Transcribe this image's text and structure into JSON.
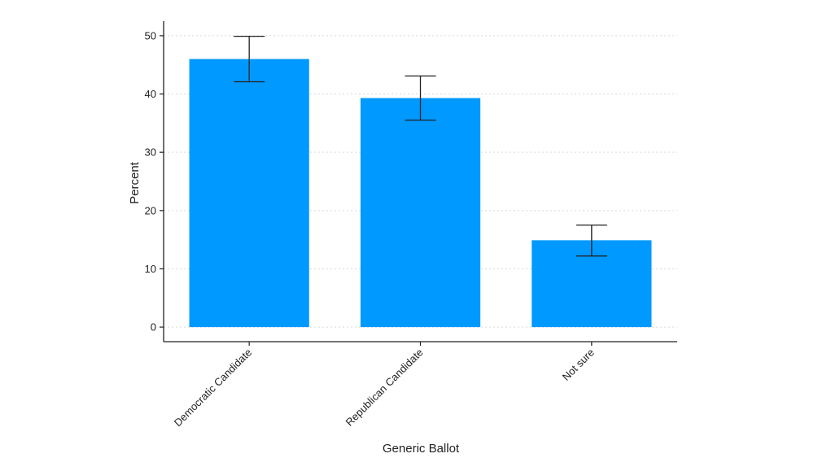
{
  "chart_data": {
    "type": "bar",
    "title": "",
    "xlabel": "Generic Ballot",
    "ylabel": "Percent",
    "categories": [
      "Democratic Candidate",
      "Republican Candidate",
      "Not sure"
    ],
    "values": [
      46.0,
      39.3,
      14.9
    ],
    "error_low": [
      42.1,
      35.5,
      12.2
    ],
    "error_high": [
      49.9,
      43.1,
      17.5
    ],
    "ylim": [
      -2.5,
      52.5
    ],
    "yticks": [
      0,
      10,
      20,
      30,
      40,
      50
    ],
    "grid": true,
    "bar_color": "#0099ff",
    "error_bar_color": "#222222"
  }
}
